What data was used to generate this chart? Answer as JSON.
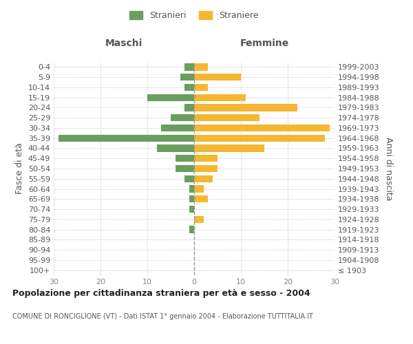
{
  "age_groups": [
    "100+",
    "95-99",
    "90-94",
    "85-89",
    "80-84",
    "75-79",
    "70-74",
    "65-69",
    "60-64",
    "55-59",
    "50-54",
    "45-49",
    "40-44",
    "35-39",
    "30-34",
    "25-29",
    "20-24",
    "15-19",
    "10-14",
    "5-9",
    "0-4"
  ],
  "birth_years": [
    "≤ 1903",
    "1904-1908",
    "1909-1913",
    "1914-1918",
    "1919-1923",
    "1924-1928",
    "1929-1933",
    "1934-1938",
    "1939-1943",
    "1944-1948",
    "1949-1953",
    "1954-1958",
    "1959-1963",
    "1964-1968",
    "1969-1973",
    "1974-1978",
    "1979-1983",
    "1984-1988",
    "1989-1993",
    "1994-1998",
    "1999-2003"
  ],
  "males": [
    0,
    0,
    0,
    0,
    1,
    0,
    1,
    1,
    1,
    2,
    4,
    4,
    8,
    29,
    7,
    5,
    2,
    10,
    2,
    3,
    2
  ],
  "females": [
    0,
    0,
    0,
    0,
    0,
    2,
    0,
    3,
    2,
    4,
    5,
    5,
    15,
    28,
    29,
    14,
    22,
    11,
    3,
    10,
    3
  ],
  "male_color": "#6a9e5e",
  "female_color": "#f5b731",
  "background_color": "#ffffff",
  "grid_color": "#cccccc",
  "title": "Popolazione per cittadinanza straniera per età e sesso - 2004",
  "subtitle": "COMUNE DI RONCIGLIONE (VT) - Dati ISTAT 1° gennaio 2004 - Elaborazione TUTTITALIA.IT",
  "xlabel_left": "Maschi",
  "xlabel_right": "Femmine",
  "ylabel_left": "Fasce di età",
  "ylabel_right": "Anni di nascita",
  "legend_male": "Stranieri",
  "legend_female": "Straniere",
  "xlim": 30,
  "tick_color": "#888888",
  "label_color": "#555555",
  "dashed_line_color": "#999999"
}
